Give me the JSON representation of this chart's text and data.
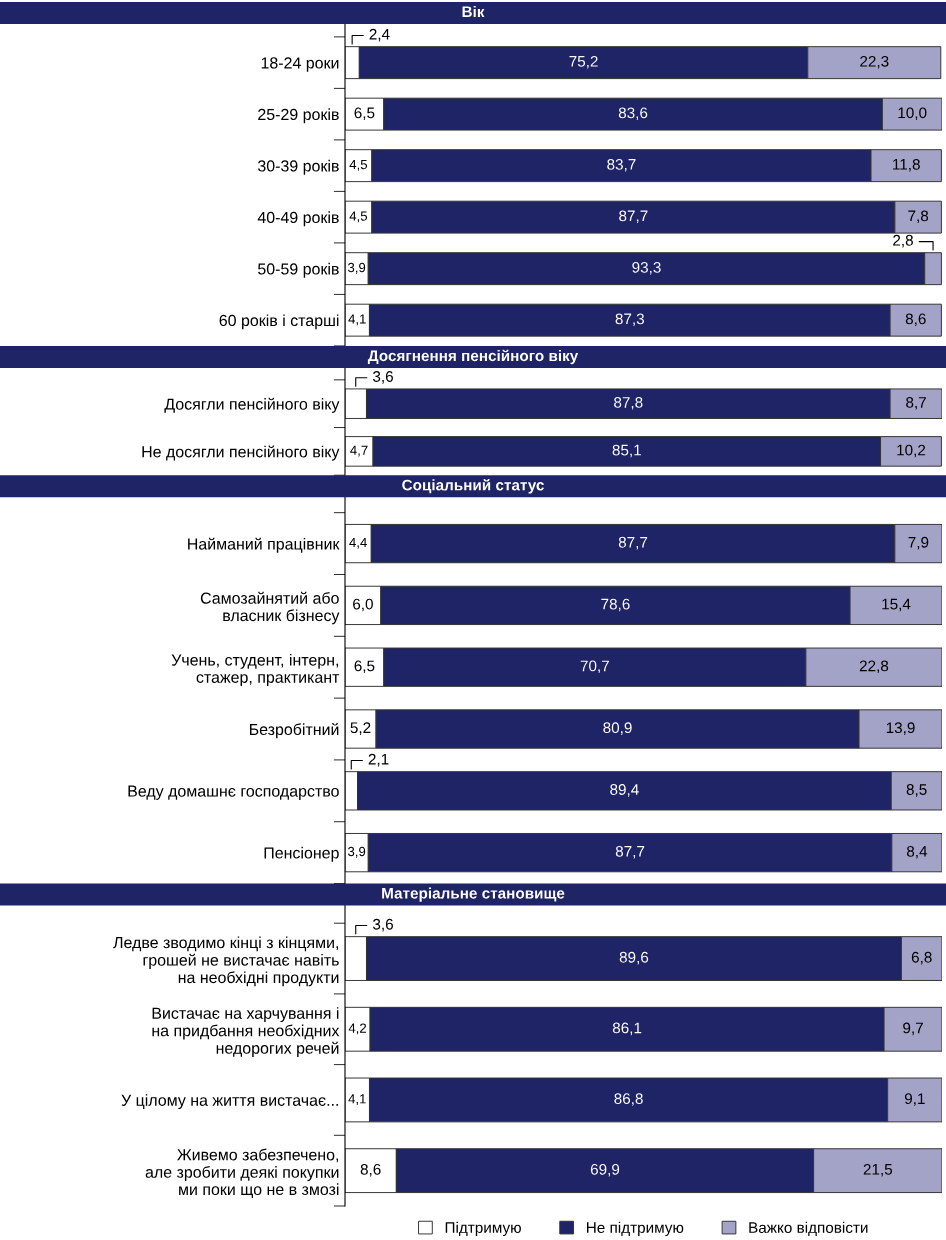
{
  "chart_data": [
    {
      "type": "bar",
      "orientation": "horizontal",
      "stacked": true,
      "tick_labels": "y",
      "title": "Вік",
      "categories": [
        "18-24 роки",
        "25-29 років",
        "30-39 років",
        "40-49 років",
        "50-59 років",
        "60 років і старші"
      ],
      "series": [
        {
          "color": "#ffffff",
          "values": [
            2.4,
            6.5,
            4.5,
            4.5,
            3.9,
            4.1
          ],
          "value_labels": [
            "2,4",
            "6,5",
            "4,5",
            "4,5",
            "3,9",
            "4,1"
          ]
        },
        {
          "color": "#1f2466",
          "values": [
            75.2,
            83.6,
            83.7,
            87.7,
            93.3,
            87.3
          ],
          "value_labels": [
            "75,2",
            "83,6",
            "83,7",
            "87,7",
            "93,3",
            "87,3"
          ]
        },
        {
          "color": "#a3a3c8",
          "values": [
            22.3,
            10.0,
            11.8,
            7.8,
            2.8,
            8.6
          ],
          "value_labels": [
            "22,3",
            "10,0",
            "11,8",
            "7,8",
            "2,8",
            "8,6"
          ]
        }
      ]
    },
    {
      "type": "bar",
      "orientation": "horizontal",
      "stacked": true,
      "tick_labels": "y",
      "title": "Досягнення пенсійного віку",
      "categories": [
        "Досягли пенсійного віку",
        "Не досягли пенсійного віку"
      ],
      "series": [
        {
          "color": "#ffffff",
          "values": [
            3.6,
            4.7
          ],
          "value_labels": [
            "3,6",
            "4,7"
          ]
        },
        {
          "color": "#1f2466",
          "values": [
            87.8,
            85.1
          ],
          "value_labels": [
            "87,8",
            "85,1"
          ]
        },
        {
          "color": "#a3a3c8",
          "values": [
            8.7,
            10.2
          ],
          "value_labels": [
            "8,7",
            "10,2"
          ]
        }
      ]
    },
    {
      "type": "bar",
      "orientation": "horizontal",
      "stacked": true,
      "tick_labels": "y",
      "title": "Соціальний статус",
      "categories": [
        "Найманий працівник",
        "Самозайнятий або\nвласник бізнесу",
        "Учень, студент, інтерн,\nстажер, практикант",
        "Безробітний",
        "Веду домашнє господарство",
        "Пенсіонер"
      ],
      "series": [
        {
          "color": "#ffffff",
          "values": [
            4.4,
            6.0,
            6.5,
            5.2,
            2.1,
            3.9
          ],
          "value_labels": [
            "4,4",
            "6,0",
            "6,5",
            "5,2",
            "2,1",
            "3,9"
          ]
        },
        {
          "color": "#1f2466",
          "values": [
            87.7,
            78.6,
            70.7,
            80.9,
            89.4,
            87.7
          ],
          "value_labels": [
            "87,7",
            "78,6",
            "70,7",
            "80,9",
            "89,4",
            "87,7"
          ]
        },
        {
          "color": "#a3a3c8",
          "values": [
            7.9,
            15.4,
            22.8,
            13.9,
            8.5,
            8.4
          ],
          "value_labels": [
            "7,9",
            "15,4",
            "22,8",
            "13,9",
            "8,5",
            "8,4"
          ]
        }
      ]
    },
    {
      "type": "bar",
      "orientation": "horizontal",
      "stacked": true,
      "tick_labels": "y",
      "title": "Матеріальне становище",
      "legend": "bottom",
      "categories": [
        "Ледве зводимо кінці з кінцями,\nгрошей не вистачає навіть\nна необхідні продукти",
        "Вистачає на харчування і\nна придбання необхідних\nнедорогих речей",
        "У цілому на життя вистачає...",
        "Живемо забезпечено,\nале зробити деякі покупки\nми поки що не в змозі"
      ],
      "series": [
        {
          "name": "Підтримую",
          "color": "#ffffff",
          "values": [
            3.6,
            4.2,
            4.1,
            8.6
          ],
          "value_labels": [
            "3,6",
            "4,2",
            "4,1",
            "8,6"
          ]
        },
        {
          "name": "Не підтримую",
          "color": "#1f2466",
          "values": [
            89.6,
            86.1,
            86.8,
            69.9
          ],
          "value_labels": [
            "89,6",
            "86,1",
            "86,8",
            "69,9"
          ]
        },
        {
          "name": "Важко відповісти",
          "color": "#a3a3c8",
          "values": [
            6.8,
            9.7,
            9.1,
            21.5
          ],
          "value_labels": [
            "6,8",
            "9,7",
            "9,1",
            "21,5"
          ]
        }
      ]
    }
  ]
}
